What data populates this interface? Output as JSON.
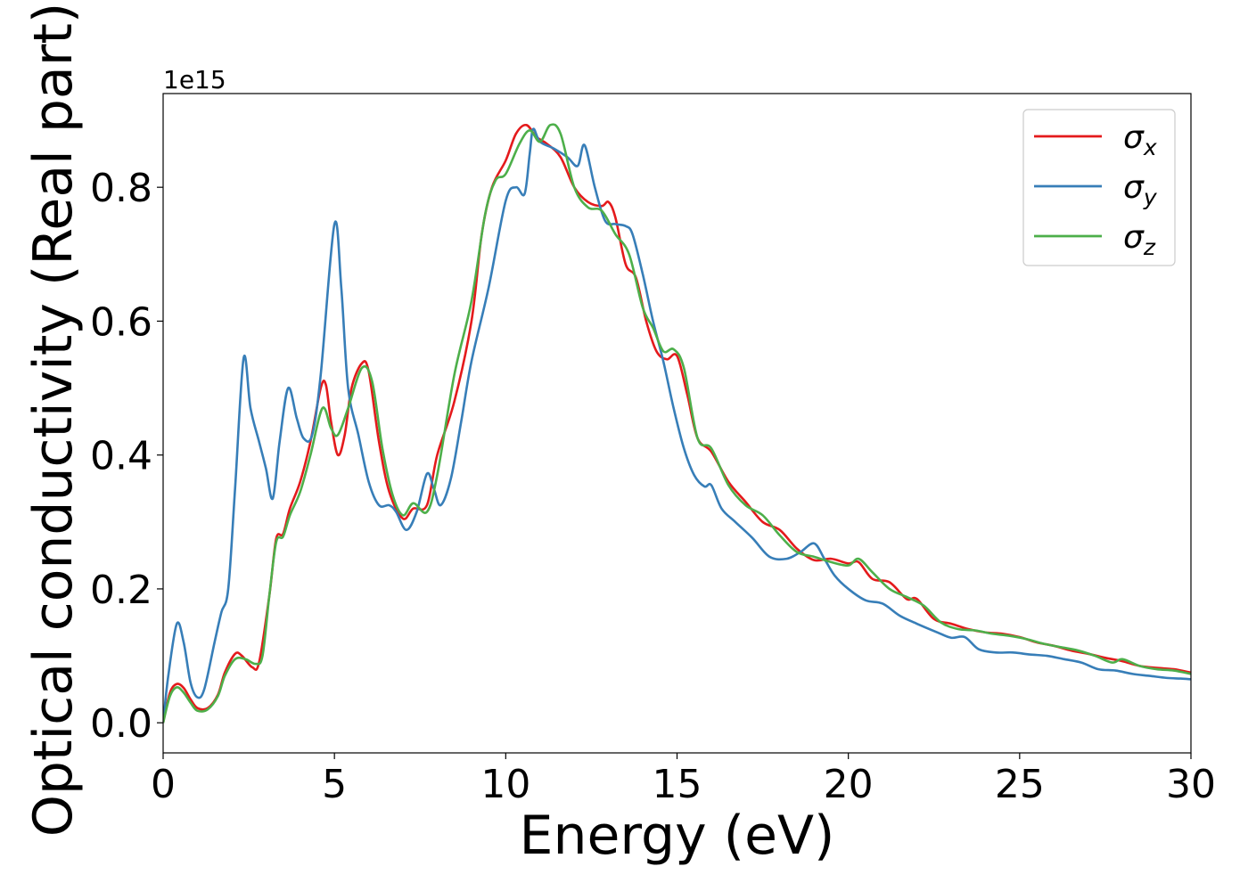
{
  "chart_data": {
    "type": "line",
    "xlabel": "Energy (eV)",
    "ylabel": "Optical conductivity (Real part)",
    "offset_text": "1e15",
    "xlim": [
      0,
      30
    ],
    "ylim": [
      -0.045,
      0.94
    ],
    "y_scale_multiplier": 1000000000000000.0,
    "xticks": [
      0,
      5,
      10,
      15,
      20,
      25,
      30
    ],
    "yticks": [
      0.0,
      0.2,
      0.4,
      0.6,
      0.8
    ],
    "xtick_labels": [
      "0",
      "5",
      "10",
      "15",
      "20",
      "25",
      "30"
    ],
    "ytick_labels": [
      "0.0",
      "0.2",
      "0.4",
      "0.6",
      "0.8"
    ],
    "grid": false,
    "legend_placement": "top-right",
    "series": [
      {
        "name": "σx",
        "label_symbol": "σ",
        "label_sub": "x",
        "color": "#e41a1c",
        "points": [
          [
            0,
            0.0
          ],
          [
            0.2,
            0.045
          ],
          [
            0.4,
            0.058
          ],
          [
            0.6,
            0.052
          ],
          [
            0.8,
            0.035
          ],
          [
            1.0,
            0.022
          ],
          [
            1.3,
            0.022
          ],
          [
            1.6,
            0.042
          ],
          [
            1.8,
            0.075
          ],
          [
            2.1,
            0.103
          ],
          [
            2.3,
            0.1
          ],
          [
            2.6,
            0.083
          ],
          [
            2.8,
            0.09
          ],
          [
            3.1,
            0.19
          ],
          [
            3.3,
            0.275
          ],
          [
            3.5,
            0.282
          ],
          [
            3.7,
            0.32
          ],
          [
            4.0,
            0.36
          ],
          [
            4.3,
            0.42
          ],
          [
            4.6,
            0.5
          ],
          [
            4.75,
            0.505
          ],
          [
            4.9,
            0.45
          ],
          [
            5.1,
            0.4
          ],
          [
            5.3,
            0.43
          ],
          [
            5.5,
            0.5
          ],
          [
            5.8,
            0.537
          ],
          [
            6.0,
            0.525
          ],
          [
            6.3,
            0.42
          ],
          [
            6.6,
            0.345
          ],
          [
            7.0,
            0.305
          ],
          [
            7.3,
            0.32
          ],
          [
            7.7,
            0.325
          ],
          [
            8.0,
            0.4
          ],
          [
            8.5,
            0.48
          ],
          [
            9.0,
            0.6
          ],
          [
            9.3,
            0.73
          ],
          [
            9.6,
            0.8
          ],
          [
            10.0,
            0.84
          ],
          [
            10.3,
            0.88
          ],
          [
            10.6,
            0.893
          ],
          [
            10.9,
            0.875
          ],
          [
            11.2,
            0.865
          ],
          [
            11.6,
            0.845
          ],
          [
            12.0,
            0.8
          ],
          [
            12.4,
            0.778
          ],
          [
            12.8,
            0.772
          ],
          [
            13.0,
            0.778
          ],
          [
            13.2,
            0.755
          ],
          [
            13.5,
            0.685
          ],
          [
            13.8,
            0.665
          ],
          [
            14.1,
            0.6
          ],
          [
            14.4,
            0.555
          ],
          [
            14.7,
            0.543
          ],
          [
            15.0,
            0.548
          ],
          [
            15.3,
            0.49
          ],
          [
            15.6,
            0.425
          ],
          [
            16.0,
            0.405
          ],
          [
            16.5,
            0.36
          ],
          [
            17.0,
            0.33
          ],
          [
            17.5,
            0.3
          ],
          [
            18.0,
            0.288
          ],
          [
            18.5,
            0.26
          ],
          [
            19.0,
            0.243
          ],
          [
            19.5,
            0.245
          ],
          [
            20.0,
            0.238
          ],
          [
            20.3,
            0.24
          ],
          [
            20.7,
            0.215
          ],
          [
            21.2,
            0.21
          ],
          [
            21.7,
            0.185
          ],
          [
            22.0,
            0.185
          ],
          [
            22.5,
            0.155
          ],
          [
            23.0,
            0.148
          ],
          [
            23.5,
            0.14
          ],
          [
            24.0,
            0.135
          ],
          [
            24.5,
            0.133
          ],
          [
            25.0,
            0.128
          ],
          [
            25.5,
            0.12
          ],
          [
            26.0,
            0.115
          ],
          [
            26.5,
            0.108
          ],
          [
            27.0,
            0.103
          ],
          [
            27.5,
            0.097
          ],
          [
            28.0,
            0.092
          ],
          [
            28.5,
            0.085
          ],
          [
            29.0,
            0.082
          ],
          [
            29.5,
            0.08
          ],
          [
            30.0,
            0.075
          ]
        ]
      },
      {
        "name": "σy",
        "label_symbol": "σ",
        "label_sub": "y",
        "color": "#377eb8",
        "points": [
          [
            0,
            0.0
          ],
          [
            0.15,
            0.07
          ],
          [
            0.4,
            0.148
          ],
          [
            0.6,
            0.12
          ],
          [
            0.8,
            0.06
          ],
          [
            1.0,
            0.038
          ],
          [
            1.2,
            0.05
          ],
          [
            1.5,
            0.12
          ],
          [
            1.7,
            0.165
          ],
          [
            1.9,
            0.2
          ],
          [
            2.1,
            0.35
          ],
          [
            2.35,
            0.545
          ],
          [
            2.55,
            0.47
          ],
          [
            2.8,
            0.42
          ],
          [
            3.0,
            0.38
          ],
          [
            3.2,
            0.335
          ],
          [
            3.4,
            0.42
          ],
          [
            3.65,
            0.5
          ],
          [
            3.9,
            0.455
          ],
          [
            4.1,
            0.425
          ],
          [
            4.35,
            0.43
          ],
          [
            4.6,
            0.52
          ],
          [
            5.0,
            0.745
          ],
          [
            5.2,
            0.65
          ],
          [
            5.4,
            0.5
          ],
          [
            5.7,
            0.43
          ],
          [
            6.0,
            0.36
          ],
          [
            6.3,
            0.325
          ],
          [
            6.6,
            0.325
          ],
          [
            6.8,
            0.315
          ],
          [
            7.1,
            0.288
          ],
          [
            7.4,
            0.315
          ],
          [
            7.7,
            0.372
          ],
          [
            7.9,
            0.35
          ],
          [
            8.1,
            0.325
          ],
          [
            8.4,
            0.365
          ],
          [
            8.7,
            0.45
          ],
          [
            9.0,
            0.54
          ],
          [
            9.5,
            0.65
          ],
          [
            10.0,
            0.78
          ],
          [
            10.3,
            0.8
          ],
          [
            10.55,
            0.79
          ],
          [
            10.7,
            0.85
          ],
          [
            10.8,
            0.887
          ],
          [
            11.0,
            0.868
          ],
          [
            11.4,
            0.858
          ],
          [
            11.8,
            0.845
          ],
          [
            12.1,
            0.832
          ],
          [
            12.3,
            0.863
          ],
          [
            12.6,
            0.8
          ],
          [
            12.9,
            0.75
          ],
          [
            13.2,
            0.745
          ],
          [
            13.5,
            0.742
          ],
          [
            13.7,
            0.73
          ],
          [
            14.0,
            0.67
          ],
          [
            14.3,
            0.6
          ],
          [
            14.6,
            0.54
          ],
          [
            14.9,
            0.47
          ],
          [
            15.2,
            0.41
          ],
          [
            15.5,
            0.37
          ],
          [
            15.8,
            0.353
          ],
          [
            16.0,
            0.355
          ],
          [
            16.3,
            0.32
          ],
          [
            16.7,
            0.3
          ],
          [
            17.2,
            0.276
          ],
          [
            17.7,
            0.248
          ],
          [
            18.2,
            0.245
          ],
          [
            18.6,
            0.255
          ],
          [
            19.0,
            0.268
          ],
          [
            19.3,
            0.245
          ],
          [
            19.6,
            0.22
          ],
          [
            20.0,
            0.2
          ],
          [
            20.5,
            0.183
          ],
          [
            21.0,
            0.178
          ],
          [
            21.5,
            0.16
          ],
          [
            22.0,
            0.148
          ],
          [
            22.6,
            0.135
          ],
          [
            23.0,
            0.127
          ],
          [
            23.4,
            0.128
          ],
          [
            23.8,
            0.11
          ],
          [
            24.3,
            0.105
          ],
          [
            24.8,
            0.105
          ],
          [
            25.3,
            0.102
          ],
          [
            25.8,
            0.1
          ],
          [
            26.3,
            0.095
          ],
          [
            26.8,
            0.09
          ],
          [
            27.3,
            0.08
          ],
          [
            27.8,
            0.078
          ],
          [
            28.3,
            0.073
          ],
          [
            28.8,
            0.07
          ],
          [
            29.3,
            0.067
          ],
          [
            29.7,
            0.066
          ],
          [
            30.0,
            0.065
          ]
        ]
      },
      {
        "name": "σz",
        "label_symbol": "σ",
        "label_sub": "z",
        "color": "#4daf4a",
        "points": [
          [
            0,
            0.0
          ],
          [
            0.2,
            0.04
          ],
          [
            0.4,
            0.053
          ],
          [
            0.6,
            0.045
          ],
          [
            0.8,
            0.03
          ],
          [
            1.0,
            0.018
          ],
          [
            1.3,
            0.02
          ],
          [
            1.6,
            0.04
          ],
          [
            1.8,
            0.07
          ],
          [
            2.1,
            0.095
          ],
          [
            2.4,
            0.095
          ],
          [
            2.7,
            0.088
          ],
          [
            2.9,
            0.1
          ],
          [
            3.1,
            0.19
          ],
          [
            3.3,
            0.27
          ],
          [
            3.5,
            0.278
          ],
          [
            3.7,
            0.31
          ],
          [
            4.0,
            0.345
          ],
          [
            4.3,
            0.4
          ],
          [
            4.65,
            0.47
          ],
          [
            4.9,
            0.44
          ],
          [
            5.1,
            0.43
          ],
          [
            5.4,
            0.47
          ],
          [
            5.8,
            0.53
          ],
          [
            6.1,
            0.51
          ],
          [
            6.4,
            0.41
          ],
          [
            6.7,
            0.34
          ],
          [
            7.0,
            0.31
          ],
          [
            7.3,
            0.328
          ],
          [
            7.7,
            0.315
          ],
          [
            8.0,
            0.37
          ],
          [
            8.5,
            0.52
          ],
          [
            9.0,
            0.63
          ],
          [
            9.4,
            0.76
          ],
          [
            9.7,
            0.81
          ],
          [
            10.0,
            0.82
          ],
          [
            10.4,
            0.865
          ],
          [
            10.7,
            0.885
          ],
          [
            11.0,
            0.868
          ],
          [
            11.3,
            0.893
          ],
          [
            11.6,
            0.88
          ],
          [
            12.0,
            0.8
          ],
          [
            12.4,
            0.77
          ],
          [
            12.8,
            0.765
          ],
          [
            13.2,
            0.73
          ],
          [
            13.6,
            0.7
          ],
          [
            14.0,
            0.62
          ],
          [
            14.3,
            0.59
          ],
          [
            14.6,
            0.555
          ],
          [
            14.9,
            0.558
          ],
          [
            15.2,
            0.53
          ],
          [
            15.6,
            0.425
          ],
          [
            16.0,
            0.41
          ],
          [
            16.5,
            0.355
          ],
          [
            17.0,
            0.325
          ],
          [
            17.5,
            0.31
          ],
          [
            18.0,
            0.28
          ],
          [
            18.5,
            0.255
          ],
          [
            19.0,
            0.248
          ],
          [
            19.5,
            0.24
          ],
          [
            20.0,
            0.235
          ],
          [
            20.3,
            0.245
          ],
          [
            20.7,
            0.225
          ],
          [
            21.2,
            0.2
          ],
          [
            21.7,
            0.188
          ],
          [
            22.2,
            0.175
          ],
          [
            22.7,
            0.15
          ],
          [
            23.2,
            0.14
          ],
          [
            23.7,
            0.138
          ],
          [
            24.2,
            0.133
          ],
          [
            24.7,
            0.13
          ],
          [
            25.2,
            0.125
          ],
          [
            25.7,
            0.118
          ],
          [
            26.2,
            0.113
          ],
          [
            26.7,
            0.108
          ],
          [
            27.2,
            0.1
          ],
          [
            27.7,
            0.09
          ],
          [
            28.0,
            0.095
          ],
          [
            28.5,
            0.085
          ],
          [
            29.0,
            0.08
          ],
          [
            29.5,
            0.078
          ],
          [
            30.0,
            0.073
          ]
        ]
      }
    ]
  }
}
